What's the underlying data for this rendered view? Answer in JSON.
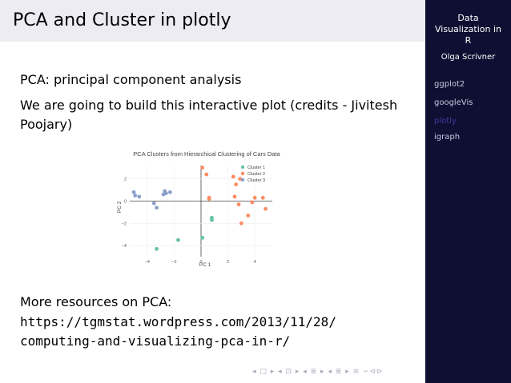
{
  "slide": {
    "title": "PCA and Cluster in plotly",
    "line1": "PCA: principal component analysis",
    "line2a": "We are going to build this interactive plot (credits - Jivitesh",
    "line2b": "Poojary)",
    "more": "More resources on PCA:",
    "url1": "https://tgmstat.wordpress.com/2013/11/28/",
    "url2": "computing-and-visualizing-pca-in-r/"
  },
  "sidebar": {
    "title1": "Data",
    "title2": "Visualization in",
    "title3": "R",
    "author": "Olga Scrivner",
    "items": [
      {
        "label": "ggplot2",
        "active": false
      },
      {
        "label": "googleVis",
        "active": false
      },
      {
        "label": "plotly",
        "active": true
      },
      {
        "label": "igraph",
        "active": false
      }
    ]
  },
  "nav": "◂ □ ▸ ◂ ⊡ ▸ ◂ ≣ ▸ ◂ ≣ ▸ ≡ ∽⊲⊳",
  "chart_data": {
    "type": "scatter",
    "title": "PCA Clusters from Hierarchical Clustering of Cars Data",
    "xlabel": "PC 1",
    "ylabel": "PC 2",
    "xlim": [
      -5.3,
      5.3
    ],
    "ylim": [
      -5.0,
      3.2
    ],
    "xticks": [
      -4,
      -2,
      0,
      2,
      4
    ],
    "yticks": [
      -4,
      -2,
      0,
      2
    ],
    "colors": {
      "Cluster 1": "#66c2a5",
      "Cluster 2": "#fc8d62",
      "Cluster 3": "#8da0cb"
    },
    "series": [
      {
        "name": "Cluster 1",
        "points": [
          [
            -3.3,
            -4.3
          ],
          [
            -1.7,
            -3.5
          ],
          [
            0.1,
            -3.3
          ],
          [
            0.8,
            -1.5
          ],
          [
            0.8,
            -1.7
          ]
        ]
      },
      {
        "name": "Cluster 2",
        "points": [
          [
            0.1,
            3.0
          ],
          [
            0.4,
            2.4
          ],
          [
            2.4,
            2.2
          ],
          [
            2.9,
            2.0
          ],
          [
            2.6,
            1.5
          ],
          [
            0.6,
            0.3
          ],
          [
            0.6,
            0.2
          ],
          [
            2.5,
            0.4
          ],
          [
            2.8,
            -0.3
          ],
          [
            4.0,
            0.3
          ],
          [
            4.6,
            0.3
          ],
          [
            3.8,
            -0.1
          ],
          [
            4.8,
            -0.7
          ],
          [
            3.5,
            -1.3
          ],
          [
            3.0,
            -2.0
          ]
        ]
      },
      {
        "name": "Cluster 3",
        "points": [
          [
            -5.0,
            0.8
          ],
          [
            -4.9,
            0.5
          ],
          [
            -4.6,
            0.4
          ],
          [
            -2.7,
            0.9
          ],
          [
            -2.6,
            0.7
          ],
          [
            -2.3,
            0.8
          ],
          [
            -2.8,
            0.6
          ],
          [
            -3.5,
            -0.2
          ],
          [
            -3.3,
            -0.6
          ]
        ]
      }
    ]
  }
}
